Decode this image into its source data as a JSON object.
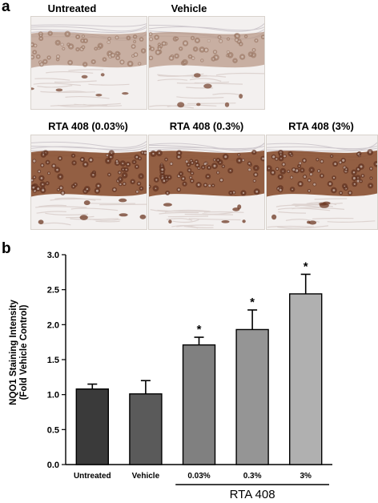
{
  "panel_a": {
    "letter": "a",
    "images": [
      {
        "label": "Untreated",
        "intensity": "low"
      },
      {
        "label": "Vehicle",
        "intensity": "low"
      },
      {
        "label": "RTA 408 (0.03%)",
        "intensity": "high"
      },
      {
        "label": "RTA 408 (0.3%)",
        "intensity": "high"
      },
      {
        "label": "RTA 408 (3%)",
        "intensity": "high"
      }
    ]
  },
  "panel_b": {
    "letter": "b"
  },
  "colors": {
    "bar_dark": "#3a3a3a",
    "bar_mid": "#707070",
    "bar_light": "#a8a8a8",
    "tissue_brown": "#8a5a3e"
  },
  "chart_data": {
    "type": "bar",
    "categories": [
      "Untreated",
      "Vehicle",
      "0.03%",
      "0.3%",
      "3%"
    ],
    "values": [
      1.08,
      1.01,
      1.71,
      1.93,
      2.44
    ],
    "errors": [
      0.07,
      0.19,
      0.11,
      0.28,
      0.28
    ],
    "significance": [
      "",
      "",
      "*",
      "*",
      "*"
    ],
    "bar_colors": [
      "#3a3a3a",
      "#5a5a5a",
      "#808080",
      "#959595",
      "#b0b0b0"
    ],
    "ylabel_line1": "NQO1 Staining Intensity",
    "ylabel_line2": "(Fold Vehicle Control)",
    "ylim": [
      0,
      3.0
    ],
    "yticks": [
      "0.0",
      "0.5",
      "1.0",
      "1.5",
      "2.0",
      "2.5",
      "3.0"
    ],
    "group_label": "RTA 408",
    "grid": false
  }
}
